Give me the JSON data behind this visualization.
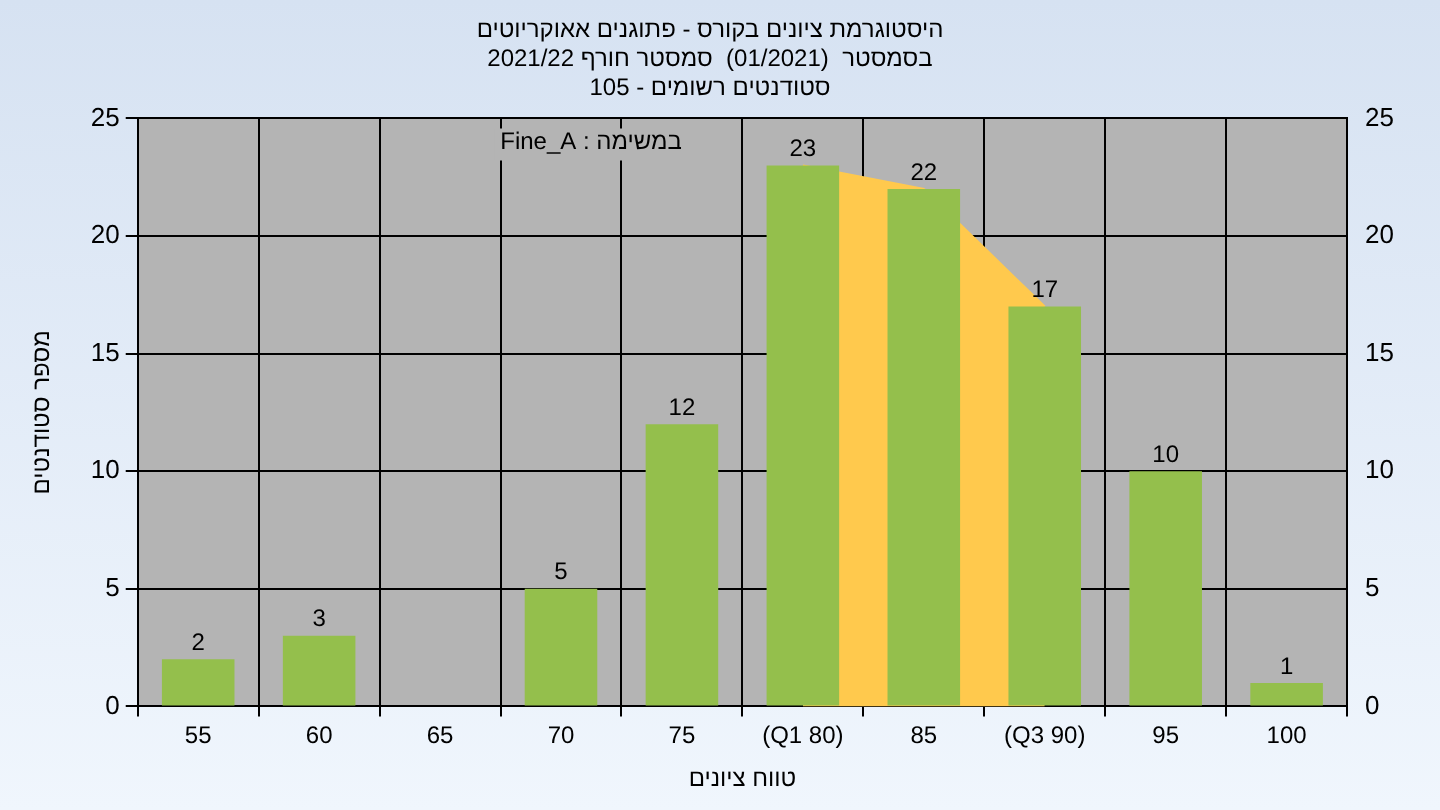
{
  "chart_data": {
    "type": "bar",
    "title": "היסטוגרמת ציונים בקורס - פתוגנים אאוקריוטים",
    "subtitle": "בסמסטר  (01/2021)  סמסטר חורף 2021/22\nסטודנטים רשומים - 105",
    "xlabel": "טווח ציונים",
    "ylabel": "מספר סטודנטים",
    "annotations": [
      "במשימה : Fine_A"
    ],
    "categories": [
      "55",
      "60",
      "65",
      "70",
      "75",
      "(Q1 80)",
      "85",
      "(Q3 90)",
      "95",
      "100"
    ],
    "series": [
      {
        "color": "#94bf4c",
        "values": [
          2,
          3,
          null,
          5,
          12,
          23,
          22,
          17,
          10,
          1
        ],
        "value_labels": [
          "2",
          "3",
          null,
          "5",
          "12",
          "23",
          "22",
          "17",
          "10",
          "1"
        ]
      },
      {
        "type": "area",
        "color": "#ffc94d",
        "values": [
          null,
          null,
          null,
          null,
          null,
          23,
          22,
          17,
          null,
          null
        ]
      }
    ],
    "ylim": [
      0,
      25
    ],
    "yticks": [
      0,
      5,
      10,
      15,
      20,
      25
    ],
    "y2lim": [
      0,
      25
    ],
    "y2ticks": [
      0,
      5,
      10,
      15,
      20,
      25
    ],
    "grid": true,
    "legend": false
  }
}
